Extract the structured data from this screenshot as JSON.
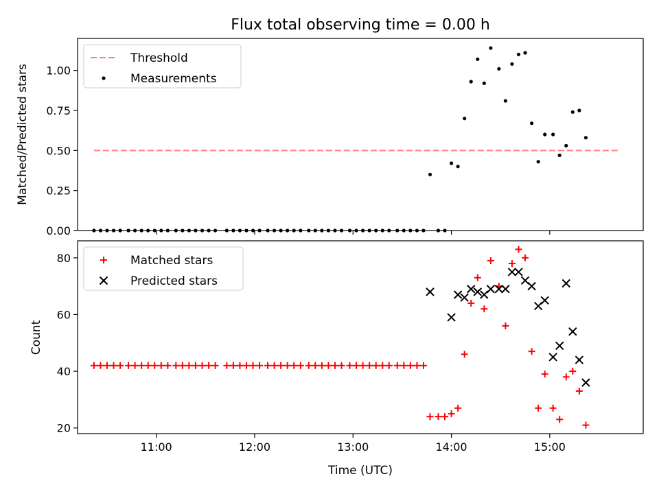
{
  "figure": {
    "title": "Flux total observing time = 0.00 h",
    "xlabel": "Time (UTC)"
  },
  "chart_data": [
    {
      "type": "scatter",
      "panel": "top",
      "ylabel": "Matched/Predicted stars",
      "xlim": [
        "10:12",
        "15:57"
      ],
      "ylim": [
        0,
        1.2
      ],
      "yticks": [
        "0.00",
        "0.25",
        "0.50",
        "0.75",
        "1.00"
      ],
      "xticks": [
        "11:00",
        "12:00",
        "13:00",
        "14:00",
        "15:00"
      ],
      "legend": {
        "placement": "upper-left",
        "entries": [
          "Threshold",
          "Measurements"
        ]
      },
      "threshold": {
        "name": "Threshold",
        "value": 0.5,
        "x_range": [
          "10:22",
          "15:43"
        ],
        "color": "#ff7f7f",
        "style": "dashed"
      },
      "series": [
        {
          "name": "Measurements",
          "marker": "dot",
          "color": "#000000",
          "points": [
            [
              "10:22",
              0
            ],
            [
              "10:26",
              0
            ],
            [
              "10:30",
              0
            ],
            [
              "10:34",
              0
            ],
            [
              "10:38",
              0
            ],
            [
              "10:43",
              0
            ],
            [
              "10:47",
              0
            ],
            [
              "10:51",
              0
            ],
            [
              "10:55",
              0
            ],
            [
              "10:59",
              0
            ],
            [
              "11:03",
              0
            ],
            [
              "11:07",
              0
            ],
            [
              "11:12",
              0
            ],
            [
              "11:16",
              0
            ],
            [
              "11:20",
              0
            ],
            [
              "11:24",
              0
            ],
            [
              "11:28",
              0
            ],
            [
              "11:32",
              0
            ],
            [
              "11:36",
              0
            ],
            [
              "11:43",
              0
            ],
            [
              "11:47",
              0
            ],
            [
              "11:51",
              0
            ],
            [
              "11:55",
              0
            ],
            [
              "11:59",
              0
            ],
            [
              "12:03",
              0
            ],
            [
              "12:08",
              0
            ],
            [
              "12:12",
              0
            ],
            [
              "12:16",
              0
            ],
            [
              "12:20",
              0
            ],
            [
              "12:24",
              0
            ],
            [
              "12:28",
              0
            ],
            [
              "12:33",
              0
            ],
            [
              "12:37",
              0
            ],
            [
              "12:41",
              0
            ],
            [
              "12:45",
              0
            ],
            [
              "12:49",
              0
            ],
            [
              "12:53",
              0
            ],
            [
              "12:58",
              0
            ],
            [
              "13:02",
              0
            ],
            [
              "13:06",
              0
            ],
            [
              "13:10",
              0
            ],
            [
              "13:14",
              0
            ],
            [
              "13:18",
              0
            ],
            [
              "13:22",
              0
            ],
            [
              "13:27",
              0
            ],
            [
              "13:31",
              0
            ],
            [
              "13:35",
              0
            ],
            [
              "13:39",
              0
            ],
            [
              "13:43",
              0
            ],
            [
              "13:47",
              0.35
            ],
            [
              "13:52",
              0
            ],
            [
              "13:56",
              0
            ],
            [
              "14:00",
              0.42
            ],
            [
              "14:04",
              0.4
            ],
            [
              "14:08",
              0.7
            ],
            [
              "14:12",
              0.93
            ],
            [
              "14:16",
              1.07
            ],
            [
              "14:20",
              0.92
            ],
            [
              "14:24",
              1.14
            ],
            [
              "14:29",
              1.01
            ],
            [
              "14:33",
              0.81
            ],
            [
              "14:37",
              1.04
            ],
            [
              "14:41",
              1.1
            ],
            [
              "14:45",
              1.11
            ],
            [
              "14:49",
              0.67
            ],
            [
              "14:53",
              0.43
            ],
            [
              "14:57",
              0.6
            ],
            [
              "15:02",
              0.6
            ],
            [
              "15:06",
              0.47
            ],
            [
              "15:10",
              0.53
            ],
            [
              "15:14",
              0.74
            ],
            [
              "15:18",
              0.75
            ],
            [
              "15:22",
              0.58
            ]
          ]
        }
      ]
    },
    {
      "type": "scatter",
      "panel": "bottom",
      "ylabel": "Count",
      "xlim": [
        "10:12",
        "15:57"
      ],
      "ylim": [
        18,
        86
      ],
      "yticks": [
        "20",
        "40",
        "60",
        "80"
      ],
      "xticks": [
        "11:00",
        "12:00",
        "13:00",
        "14:00",
        "15:00"
      ],
      "legend": {
        "placement": "upper-left",
        "entries": [
          "Matched stars",
          "Predicted stars"
        ]
      },
      "series": [
        {
          "name": "Matched stars",
          "marker": "plus",
          "color": "#ff0000",
          "points": [
            [
              "10:22",
              42
            ],
            [
              "10:26",
              42
            ],
            [
              "10:30",
              42
            ],
            [
              "10:34",
              42
            ],
            [
              "10:38",
              42
            ],
            [
              "10:43",
              42
            ],
            [
              "10:47",
              42
            ],
            [
              "10:51",
              42
            ],
            [
              "10:55",
              42
            ],
            [
              "10:59",
              42
            ],
            [
              "11:03",
              42
            ],
            [
              "11:07",
              42
            ],
            [
              "11:12",
              42
            ],
            [
              "11:16",
              42
            ],
            [
              "11:20",
              42
            ],
            [
              "11:24",
              42
            ],
            [
              "11:28",
              42
            ],
            [
              "11:32",
              42
            ],
            [
              "11:36",
              42
            ],
            [
              "11:43",
              42
            ],
            [
              "11:47",
              42
            ],
            [
              "11:51",
              42
            ],
            [
              "11:55",
              42
            ],
            [
              "11:59",
              42
            ],
            [
              "12:03",
              42
            ],
            [
              "12:08",
              42
            ],
            [
              "12:12",
              42
            ],
            [
              "12:16",
              42
            ],
            [
              "12:20",
              42
            ],
            [
              "12:24",
              42
            ],
            [
              "12:28",
              42
            ],
            [
              "12:33",
              42
            ],
            [
              "12:37",
              42
            ],
            [
              "12:41",
              42
            ],
            [
              "12:45",
              42
            ],
            [
              "12:49",
              42
            ],
            [
              "12:53",
              42
            ],
            [
              "12:58",
              42
            ],
            [
              "13:02",
              42
            ],
            [
              "13:06",
              42
            ],
            [
              "13:10",
              42
            ],
            [
              "13:14",
              42
            ],
            [
              "13:18",
              42
            ],
            [
              "13:22",
              42
            ],
            [
              "13:27",
              42
            ],
            [
              "13:31",
              42
            ],
            [
              "13:35",
              42
            ],
            [
              "13:39",
              42
            ],
            [
              "13:43",
              42
            ],
            [
              "13:47",
              24
            ],
            [
              "13:52",
              24
            ],
            [
              "13:56",
              24
            ],
            [
              "14:00",
              25
            ],
            [
              "14:04",
              27
            ],
            [
              "14:08",
              46
            ],
            [
              "14:12",
              64
            ],
            [
              "14:16",
              73
            ],
            [
              "14:20",
              62
            ],
            [
              "14:24",
              79
            ],
            [
              "14:29",
              70
            ],
            [
              "14:33",
              56
            ],
            [
              "14:37",
              78
            ],
            [
              "14:41",
              83
            ],
            [
              "14:45",
              80
            ],
            [
              "14:49",
              47
            ],
            [
              "14:53",
              27
            ],
            [
              "14:57",
              39
            ],
            [
              "15:02",
              27
            ],
            [
              "15:06",
              23
            ],
            [
              "15:10",
              38
            ],
            [
              "15:14",
              40
            ],
            [
              "15:18",
              33
            ],
            [
              "15:22",
              21
            ]
          ]
        },
        {
          "name": "Predicted stars",
          "marker": "x",
          "color": "#000000",
          "points": [
            [
              "13:47",
              68
            ],
            [
              "14:00",
              59
            ],
            [
              "14:04",
              67
            ],
            [
              "14:08",
              66
            ],
            [
              "14:12",
              69
            ],
            [
              "14:16",
              68
            ],
            [
              "14:20",
              67
            ],
            [
              "14:24",
              69
            ],
            [
              "14:29",
              69
            ],
            [
              "14:33",
              69
            ],
            [
              "14:37",
              75
            ],
            [
              "14:41",
              75
            ],
            [
              "14:45",
              72
            ],
            [
              "14:49",
              70
            ],
            [
              "14:53",
              63
            ],
            [
              "14:57",
              65
            ],
            [
              "15:02",
              45
            ],
            [
              "15:06",
              49
            ],
            [
              "15:10",
              71
            ],
            [
              "15:14",
              54
            ],
            [
              "15:18",
              44
            ],
            [
              "15:22",
              36
            ]
          ]
        }
      ]
    }
  ]
}
